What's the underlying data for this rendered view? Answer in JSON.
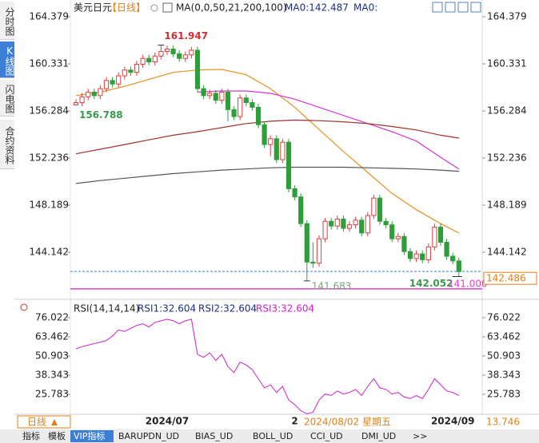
{
  "sidebar": {
    "tabs": [
      "分时图",
      "K线图",
      "闪电图",
      "合约资料"
    ]
  },
  "header": {
    "symbol": "美元日元",
    "period": "【日线】",
    "ma_legend": [
      "MA(0,0,50,21,200,100)",
      "MA0:142.487",
      "MA0:"
    ]
  },
  "chart_data": [
    {
      "type": "candlestick",
      "categories": [
        null,
        null,
        null,
        null,
        null,
        null,
        null,
        null,
        null,
        null,
        null,
        null,
        null,
        null,
        null,
        "2024/07",
        null,
        null,
        null,
        null,
        null,
        null,
        null,
        null,
        null,
        null,
        null,
        null,
        null,
        null,
        null,
        null,
        null,
        null,
        null,
        null,
        "2",
        null,
        null,
        null,
        null,
        null,
        null,
        null,
        null,
        null,
        null,
        null,
        null,
        null,
        null,
        null,
        null,
        null,
        null,
        null,
        null,
        null,
        null,
        null,
        null,
        null,
        "2024/09",
        null
      ],
      "open": [
        156.8,
        157.0,
        157.5,
        157.9,
        157.6,
        158.2,
        158.9,
        158.6,
        159.3,
        159.8,
        159.6,
        160.3,
        160.8,
        160.5,
        161.0,
        161.4,
        161.6,
        161.2,
        160.8,
        161.1,
        161.5,
        158.2,
        157.6,
        157.8,
        157.2,
        157.9,
        156.4,
        155.8,
        157.4,
        157.0,
        156.6,
        155.1,
        153.4,
        153.9,
        152.1,
        153.6,
        149.6,
        148.9,
        146.6,
        143.3,
        143.2,
        145.3,
        146.8,
        146.4,
        147.0,
        146.2,
        146.5,
        146.9,
        145.8,
        147.3,
        148.8,
        146.8,
        146.5,
        145.3,
        145.5,
        144.2,
        143.6,
        144.0,
        143.5,
        144.6,
        146.3,
        145.0,
        143.8,
        143.4
      ],
      "high": [
        157.3,
        157.8,
        158.2,
        158.2,
        158.5,
        159.2,
        159.2,
        159.6,
        160.1,
        160.1,
        160.6,
        161.1,
        161.1,
        161.3,
        161.947,
        161.9,
        161.9,
        161.5,
        161.4,
        161.8,
        161.8,
        158.5,
        158.1,
        158.1,
        158.2,
        158.2,
        156.7,
        157.7,
        157.7,
        157.3,
        156.9,
        155.4,
        154.2,
        154.2,
        153.9,
        153.9,
        149.9,
        149.2,
        146.9,
        145.0,
        145.6,
        147.1,
        147.1,
        147.3,
        147.3,
        146.8,
        147.2,
        147.2,
        147.6,
        149.1,
        149.1,
        147.1,
        146.8,
        145.8,
        145.8,
        144.5,
        144.3,
        144.3,
        144.9,
        146.6,
        146.6,
        145.3,
        144.1,
        143.7
      ],
      "low": [
        156.788,
        156.7,
        157.2,
        157.3,
        157.3,
        157.9,
        158.3,
        158.3,
        159.0,
        159.3,
        159.3,
        160.0,
        160.2,
        160.2,
        160.7,
        161.1,
        160.9,
        160.5,
        160.5,
        160.8,
        157.9,
        157.3,
        157.3,
        156.9,
        156.9,
        155.4,
        155.5,
        155.5,
        156.7,
        156.3,
        154.8,
        153.1,
        152.4,
        151.8,
        151.8,
        149.3,
        148.6,
        146.3,
        141.683,
        142.8,
        142.9,
        145.0,
        146.1,
        146.1,
        145.9,
        145.9,
        146.2,
        145.5,
        145.5,
        147.0,
        146.5,
        146.2,
        145.0,
        145.0,
        143.9,
        143.3,
        143.3,
        143.2,
        143.2,
        144.3,
        144.7,
        143.5,
        143.1,
        142.052
      ],
      "close": [
        157.0,
        157.5,
        157.9,
        157.6,
        158.2,
        158.9,
        158.6,
        159.3,
        159.8,
        159.6,
        160.3,
        160.8,
        160.5,
        161.0,
        161.4,
        161.6,
        161.2,
        160.8,
        161.1,
        161.5,
        158.2,
        157.6,
        157.8,
        157.2,
        157.9,
        156.4,
        155.8,
        157.4,
        157.0,
        156.6,
        155.1,
        153.4,
        153.9,
        152.1,
        153.6,
        149.6,
        148.9,
        146.6,
        143.3,
        143.2,
        145.3,
        146.8,
        146.4,
        147.0,
        146.2,
        146.5,
        146.9,
        145.8,
        147.3,
        148.8,
        146.8,
        146.5,
        145.3,
        145.5,
        144.2,
        143.6,
        144.0,
        143.5,
        144.6,
        146.3,
        145.0,
        143.8,
        143.4,
        142.486
      ],
      "up_color": "#e03c3c",
      "down_color": "#2f9e3a",
      "series": [
        {
          "color": "#e8901e",
          "x": [
            0,
            4,
            8,
            12,
            16,
            20,
            24,
            28,
            32,
            36,
            40,
            44,
            48,
            52,
            56,
            60,
            63
          ],
          "values": [
            157.6,
            157.9,
            158.4,
            159.0,
            159.6,
            159.8,
            159.85,
            159.4,
            158.2,
            156.6,
            154.7,
            152.8,
            151.0,
            149.2,
            147.8,
            146.6,
            145.8
          ]
        },
        {
          "color": "#d238d2",
          "x": [
            0,
            4,
            8,
            12,
            16,
            20,
            24,
            28,
            32,
            36,
            40,
            44,
            48,
            52,
            56,
            60,
            63
          ],
          "values": [
            null,
            null,
            null,
            null,
            null,
            157.9,
            158.0,
            158.0,
            157.8,
            157.3,
            156.6,
            155.9,
            155.2,
            154.5,
            153.7,
            152.3,
            151.3
          ]
        },
        {
          "color": "#a0322a",
          "x": [
            0,
            4,
            8,
            12,
            16,
            20,
            24,
            28,
            32,
            36,
            40,
            44,
            48,
            52,
            56,
            60,
            63
          ],
          "values": [
            152.6,
            153.0,
            153.4,
            153.8,
            154.2,
            154.5,
            154.85,
            155.2,
            155.4,
            155.5,
            155.45,
            155.35,
            155.2,
            154.95,
            154.65,
            154.2,
            153.95
          ]
        },
        {
          "color": "#555555",
          "x": [
            0,
            4,
            8,
            12,
            16,
            20,
            24,
            28,
            32,
            36,
            40,
            44,
            48,
            52,
            56,
            60,
            63
          ],
          "values": [
            150.05,
            150.3,
            150.5,
            150.7,
            150.9,
            151.05,
            151.2,
            151.3,
            151.4,
            151.45,
            151.45,
            151.45,
            151.4,
            151.35,
            151.3,
            151.2,
            151.1
          ]
        }
      ],
      "ref_line": {
        "value": 141,
        "label": "141.000",
        "color": "#e040c8"
      },
      "ylim": [
        140.44,
        165.27
      ],
      "yticks": [
        144.142,
        148.189,
        152.236,
        156.284,
        160.331,
        164.379
      ]
    },
    {
      "type": "line",
      "legend": [
        "RSI(14,14,14)",
        "RSI1:32.604",
        "RSI2:32.604",
        "RSI3:32.604"
      ],
      "color": "#d020d0",
      "values": [
        55.6,
        57,
        58,
        59,
        60,
        61,
        64,
        68,
        67,
        69,
        71,
        72,
        70,
        73,
        74,
        75,
        74,
        72,
        74,
        75,
        52,
        50,
        53,
        48,
        52,
        44,
        40,
        47,
        45,
        42,
        36,
        30,
        32,
        27,
        31,
        22,
        19,
        15,
        13,
        14,
        22,
        26,
        25,
        28,
        26,
        27,
        29,
        25,
        31,
        36,
        30,
        29,
        26,
        27,
        24,
        23,
        25,
        23,
        29,
        36,
        32,
        28,
        27,
        25
      ],
      "ylim": [
        12.18,
        82.82
      ],
      "yticks": [
        25.783,
        38.343,
        50.903,
        63.462,
        76.022
      ],
      "cursor_value": 13.746
    }
  ],
  "footer": {
    "period": "日线",
    "cursor_date": "2024/08/02 星期五",
    "tabs": [
      "指标",
      "模板",
      "VIP指标",
      "BARUPDN_UD",
      "BIAS_UD",
      "BOLL_UD",
      "CCI_UD",
      "DMI_UD",
      ">>"
    ]
  }
}
